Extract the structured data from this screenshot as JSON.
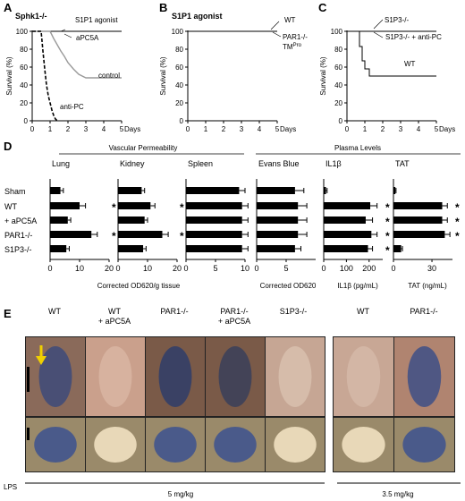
{
  "survival": {
    "A": {
      "letter": "A",
      "title": "Sphk1-/-",
      "labels": [
        "S1P1 agonist",
        "aPC5A",
        "control",
        "anti-PC"
      ]
    },
    "B": {
      "letter": "B",
      "title": "S1P1 agonist",
      "labels": [
        "WT",
        "PAR1-/-",
        "TM"
      ],
      "sup": "Pro"
    },
    "C": {
      "letter": "C",
      "title": "",
      "labels": [
        "S1P3-/-",
        "S1P3-/- + anti-PC",
        "WT"
      ]
    },
    "ylabel": "Survival (%)",
    "xlabel": "Days",
    "yticks": [
      "0",
      "20",
      "40",
      "60",
      "80",
      "100"
    ],
    "xticks": [
      "0",
      "1",
      "2",
      "3",
      "4",
      "5"
    ]
  },
  "panelD": {
    "letter": "D",
    "group1": "Vascular Permeability",
    "group2": "Plasma Levels",
    "rows": [
      "Sham",
      "WT",
      "+ aPC5A",
      "PAR1-/-",
      "S1P3-/-"
    ],
    "star": "*",
    "xlabel_vp": "Corrected OD620/g tissue",
    "xlabel_eb": "Corrected OD620",
    "xlabel_il": "IL1β (pg/mL)",
    "xlabel_tat": "TAT (ng/mL)"
  },
  "panelE": {
    "letter": "E",
    "labels": [
      [
        "WT"
      ],
      [
        "WT",
        "+ aPC5A"
      ],
      [
        "PAR1-/-"
      ],
      [
        "PAR1-/-",
        "+ aPC5A"
      ],
      [
        "S1P3-/-"
      ],
      [
        "WT"
      ],
      [
        "PAR1-/-"
      ]
    ],
    "lps": "LPS",
    "dose1": "5 mg/kg",
    "dose2": "3.5 mg/kg"
  },
  "chart_data": [
    {
      "type": "line",
      "panel": "A",
      "title": "Sphk1-/-",
      "xlabel": "Days",
      "ylabel": "Survival (%)",
      "xlim": [
        0,
        5
      ],
      "ylim": [
        0,
        100
      ],
      "series": [
        {
          "name": "S1P1 agonist",
          "x": [
            0,
            5
          ],
          "y": [
            100,
            100
          ]
        },
        {
          "name": "aPC5A",
          "x": [
            0,
            5
          ],
          "y": [
            100,
            100
          ]
        },
        {
          "name": "control",
          "x": [
            0,
            1,
            1.2,
            1.4,
            1.6,
            1.8,
            2.0,
            2.3,
            2.6,
            3.0,
            5
          ],
          "y": [
            100,
            100,
            92,
            85,
            78,
            72,
            65,
            58,
            52,
            48,
            48
          ]
        },
        {
          "name": "anti-PC",
          "x": [
            0,
            0.5,
            0.6,
            0.7,
            0.8,
            0.9,
            1.0,
            1.1,
            1.2,
            1.3,
            1.4
          ],
          "y": [
            100,
            100,
            78,
            58,
            40,
            28,
            20,
            12,
            6,
            2,
            0
          ]
        }
      ]
    },
    {
      "type": "line",
      "panel": "B",
      "title": "S1P1 agonist",
      "xlabel": "Days",
      "ylabel": "Survival (%)",
      "xlim": [
        0,
        5
      ],
      "ylim": [
        0,
        100
      ],
      "series": [
        {
          "name": "WT",
          "x": [
            0,
            5
          ],
          "y": [
            100,
            100
          ]
        },
        {
          "name": "PAR1-/-",
          "x": [
            0,
            5
          ],
          "y": [
            100,
            100
          ]
        },
        {
          "name": "TMPro",
          "x": [
            0,
            5
          ],
          "y": [
            100,
            100
          ]
        }
      ]
    },
    {
      "type": "line",
      "panel": "C",
      "xlabel": "Days",
      "ylabel": "Survival (%)",
      "xlim": [
        0,
        5
      ],
      "ylim": [
        0,
        100
      ],
      "series": [
        {
          "name": "S1P3-/-",
          "x": [
            0,
            5
          ],
          "y": [
            100,
            100
          ]
        },
        {
          "name": "S1P3-/- + anti-PC",
          "x": [
            0,
            5
          ],
          "y": [
            100,
            100
          ]
        },
        {
          "name": "WT",
          "x": [
            0,
            0.7,
            0.7,
            0.85,
            0.85,
            1.0,
            1.0,
            1.25,
            1.25,
            1.5,
            1.5,
            5
          ],
          "y": [
            100,
            100,
            83,
            83,
            67,
            67,
            58,
            58,
            50,
            50,
            50,
            50
          ]
        }
      ]
    },
    {
      "type": "bar",
      "panel": "D",
      "title": "Lung",
      "categories": [
        "Sham",
        "WT",
        "+ aPC5A",
        "PAR1-/-",
        "S1P3-/-"
      ],
      "values": [
        3.5,
        10,
        6,
        14,
        5.5
      ],
      "err": [
        1,
        2,
        1,
        2,
        1
      ],
      "xlim": [
        0,
        20
      ],
      "xticks": [
        0,
        10,
        20
      ],
      "significant": [
        false,
        true,
        false,
        true,
        false
      ],
      "xlabel": "Corrected OD620/g tissue"
    },
    {
      "type": "bar",
      "panel": "D",
      "title": "Kidney",
      "categories": [
        "Sham",
        "WT",
        "+ aPC5A",
        "PAR1-/-",
        "S1P3-/-"
      ],
      "values": [
        8,
        11,
        9,
        15,
        8.5
      ],
      "err": [
        1,
        1.5,
        1,
        2,
        1
      ],
      "xlim": [
        0,
        20
      ],
      "xticks": [
        0,
        10,
        20
      ],
      "significant": [
        false,
        true,
        false,
        true,
        false
      ],
      "xlabel": "Corrected OD620/g tissue"
    },
    {
      "type": "bar",
      "panel": "D",
      "title": "Spleen",
      "categories": [
        "Sham",
        "WT",
        "+ aPC5A",
        "PAR1-/-",
        "S1P3-/-"
      ],
      "values": [
        9,
        9.5,
        9.5,
        9.5,
        9.5
      ],
      "err": [
        1,
        1,
        1,
        1,
        1
      ],
      "xlim": [
        0,
        10
      ],
      "xticks": [
        0,
        5,
        10
      ],
      "significant": [
        false,
        false,
        false,
        false,
        false
      ],
      "xlabel": "Corrected OD620/g tissue"
    },
    {
      "type": "bar",
      "panel": "D",
      "title": "Evans Blue",
      "categories": [
        "Sham",
        "WT",
        "+ aPC5A",
        "PAR1-/-",
        "S1P3-/-"
      ],
      "values": [
        6.5,
        7,
        7,
        7,
        6.5
      ],
      "err": [
        1.5,
        1.5,
        1.5,
        1.5,
        1
      ],
      "xlim": [
        0,
        10
      ],
      "xticks": [
        0,
        5
      ],
      "significant": [
        false,
        false,
        false,
        false,
        false
      ],
      "xlabel": "Corrected OD620"
    },
    {
      "type": "bar",
      "panel": "D",
      "title": "IL1β",
      "categories": [
        "Sham",
        "WT",
        "+ aPC5A",
        "PAR1-/-",
        "S1P3-/-"
      ],
      "values": [
        10,
        205,
        185,
        210,
        195
      ],
      "err": [
        5,
        30,
        30,
        25,
        20
      ],
      "xlim": [
        0,
        260
      ],
      "xticks": [
        0,
        100,
        200
      ],
      "significant": [
        false,
        true,
        true,
        true,
        true
      ],
      "xlabel": "IL1β (pg/mL)"
    },
    {
      "type": "bar",
      "panel": "D",
      "title": "TAT",
      "categories": [
        "Sham",
        "WT",
        "+ aPC5A",
        "PAR1-/-",
        "S1P3-/-"
      ],
      "values": [
        1.5,
        38,
        38,
        40,
        6
      ],
      "err": [
        0.5,
        4,
        4,
        4,
        1
      ],
      "xlim": [
        0,
        46
      ],
      "xticks": [
        0,
        30
      ],
      "significant": [
        false,
        true,
        true,
        true,
        false
      ],
      "xlabel": "TAT (ng/mL)"
    }
  ]
}
